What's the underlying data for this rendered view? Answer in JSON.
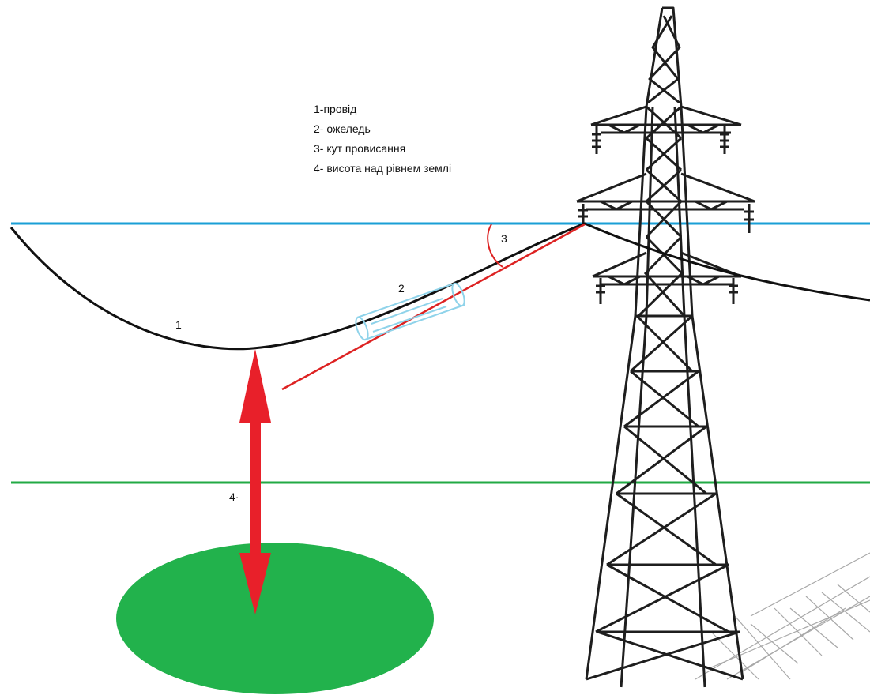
{
  "legend": {
    "item1": "1-провід",
    "item2": "2- ожеледь",
    "item3": "3- кут провисання",
    "item4": "4- висота над рівнем землі"
  },
  "labels": {
    "wire": "1",
    "ice": "2",
    "angle": "3",
    "height": "4·"
  },
  "colors": {
    "reference_line": "#1a9fd6",
    "ground_line": "#22aa44",
    "ground": "#22b24c",
    "tangent": "#dd2222",
    "arrow": "#e8202a",
    "ice": "#8fd3ea",
    "wire": "#111111",
    "tower": "#1a1a1a"
  }
}
